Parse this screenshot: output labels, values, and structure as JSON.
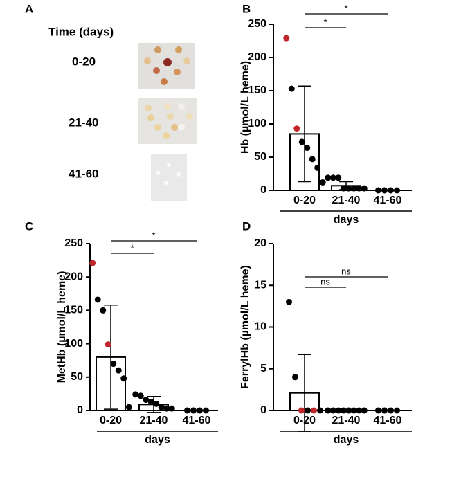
{
  "panel_labels": [
    "A",
    "B",
    "C",
    "D"
  ],
  "panel_a": {
    "header": "Time (days)",
    "rows": [
      "0-20",
      "21-40",
      "41-60"
    ]
  },
  "chart_data": [
    {
      "type": "bar",
      "ylabel": "Hb (µmol/L heme)",
      "xlabel": "days",
      "categories": [
        "0-20",
        "21-40",
        "41-60"
      ],
      "values": [
        85,
        7,
        0
      ],
      "errors": [
        72,
        6,
        0
      ],
      "points": [
        [
          {
            "y": 229,
            "color": "#c0262c"
          },
          {
            "y": 153,
            "color": "#000000"
          },
          {
            "y": 93,
            "color": "#c0262c"
          },
          {
            "y": 73,
            "color": "#000000"
          },
          {
            "y": 64,
            "color": "#000000"
          },
          {
            "y": 47,
            "color": "#000000"
          },
          {
            "y": 34,
            "color": "#000000"
          },
          {
            "y": 12,
            "color": "#000000"
          }
        ],
        [
          {
            "y": 19,
            "color": "#000000"
          },
          {
            "y": 19,
            "color": "#000000"
          },
          {
            "y": 19,
            "color": "#000000"
          },
          {
            "y": 3,
            "color": "#000000"
          },
          {
            "y": 3,
            "color": "#000000"
          },
          {
            "y": 3,
            "color": "#000000"
          },
          {
            "y": 3,
            "color": "#000000"
          },
          {
            "y": 3,
            "color": "#000000"
          }
        ],
        [
          {
            "y": 0,
            "color": "#000000"
          },
          {
            "y": 0,
            "color": "#000000"
          },
          {
            "y": 0,
            "color": "#000000"
          },
          {
            "y": 0,
            "color": "#000000"
          }
        ]
      ],
      "comparisons": [
        {
          "between": [
            "0-20",
            "41-60"
          ],
          "label": "*"
        },
        {
          "between": [
            "0-20",
            "21-40"
          ],
          "label": "*"
        }
      ],
      "ylim": [
        0,
        250
      ],
      "yticks": [
        0,
        50,
        100,
        150,
        200,
        250
      ]
    },
    {
      "type": "bar",
      "ylabel": "MetHb (µmol/L heme)",
      "xlabel": "days",
      "categories": [
        "0-20",
        "21-40",
        "41-60"
      ],
      "values": [
        80,
        9,
        0
      ],
      "errors": [
        78,
        12,
        0
      ],
      "points": [
        [
          {
            "y": 221,
            "color": "#c0262c"
          },
          {
            "y": 166,
            "color": "#000000"
          },
          {
            "y": 150,
            "color": "#000000"
          },
          {
            "y": 99,
            "color": "#c0262c"
          },
          {
            "y": 70,
            "color": "#000000"
          },
          {
            "y": 60,
            "color": "#000000"
          },
          {
            "y": 48,
            "color": "#000000"
          },
          {
            "y": 5,
            "color": "#000000"
          }
        ],
        [
          {
            "y": 24,
            "color": "#000000"
          },
          {
            "y": 22,
            "color": "#000000"
          },
          {
            "y": 16,
            "color": "#000000"
          },
          {
            "y": 13,
            "color": "#000000"
          },
          {
            "y": 10,
            "color": "#000000"
          },
          {
            "y": 5,
            "color": "#000000"
          },
          {
            "y": 3,
            "color": "#000000"
          },
          {
            "y": 3,
            "color": "#000000"
          }
        ],
        [
          {
            "y": 0,
            "color": "#000000"
          },
          {
            "y": 0,
            "color": "#000000"
          },
          {
            "y": 0,
            "color": "#000000"
          },
          {
            "y": 0,
            "color": "#000000"
          }
        ]
      ],
      "comparisons": [
        {
          "between": [
            "0-20",
            "41-60"
          ],
          "label": "*"
        },
        {
          "between": [
            "0-20",
            "21-40"
          ],
          "label": "*"
        }
      ],
      "ylim": [
        0,
        250
      ],
      "yticks": [
        0,
        50,
        100,
        150,
        200,
        250
      ]
    },
    {
      "type": "bar",
      "ylabel": "FerrylHb (µmol/L heme)",
      "xlabel": "days",
      "categories": [
        "0-20",
        "21-40",
        "41-60"
      ],
      "values": [
        2.1,
        0,
        0
      ],
      "errors": [
        4.6,
        0,
        0
      ],
      "points": [
        [
          {
            "y": 13,
            "color": "#000000"
          },
          {
            "y": 4,
            "color": "#000000"
          },
          {
            "y": 0,
            "color": "#c0262c"
          },
          {
            "y": 0,
            "color": "#000000"
          },
          {
            "y": 0,
            "color": "#c0262c"
          },
          {
            "y": 0,
            "color": "#000000"
          }
        ],
        [
          {
            "y": 0,
            "color": "#000000"
          },
          {
            "y": 0,
            "color": "#000000"
          },
          {
            "y": 0,
            "color": "#000000"
          },
          {
            "y": 0,
            "color": "#000000"
          },
          {
            "y": 0,
            "color": "#000000"
          },
          {
            "y": 0,
            "color": "#000000"
          },
          {
            "y": 0,
            "color": "#000000"
          },
          {
            "y": 0,
            "color": "#000000"
          }
        ],
        [
          {
            "y": 0,
            "color": "#000000"
          },
          {
            "y": 0,
            "color": "#000000"
          },
          {
            "y": 0,
            "color": "#000000"
          },
          {
            "y": 0,
            "color": "#000000"
          }
        ]
      ],
      "comparisons": [
        {
          "between": [
            "0-20",
            "41-60"
          ],
          "label": "ns"
        },
        {
          "between": [
            "0-20",
            "21-40"
          ],
          "label": "ns"
        }
      ],
      "ylim": [
        0,
        20
      ],
      "yticks": [
        0,
        5,
        10,
        15,
        20
      ]
    }
  ]
}
